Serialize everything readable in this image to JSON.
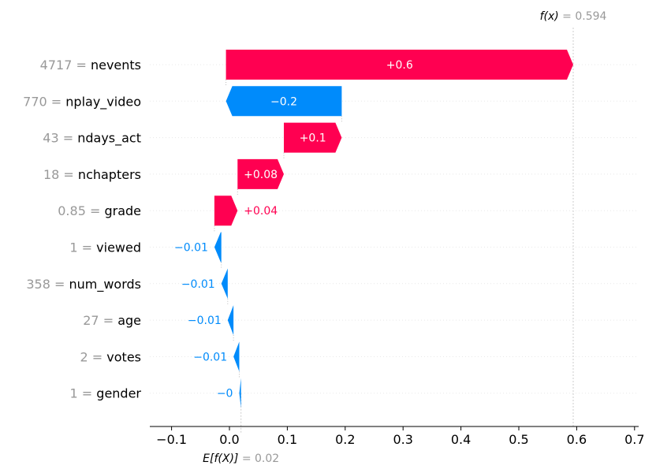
{
  "chart_data": {
    "type": "waterfall",
    "title": "",
    "xlabel": "",
    "ylabel": "",
    "xlim": [
      -0.14,
      0.7
    ],
    "x_ticks": [
      -0.1,
      0.0,
      0.1,
      0.2,
      0.3,
      0.4,
      0.5,
      0.6,
      0.7
    ],
    "x_tick_labels": [
      "−0.1",
      "0.0",
      "0.1",
      "0.2",
      "0.3",
      "0.4",
      "0.5",
      "0.6",
      "0.7"
    ],
    "base_value": 0.02,
    "base_label": "E[f(X)]",
    "base_value_text": "= 0.02",
    "output_value": 0.594,
    "output_label": "f(x)",
    "output_value_text": "= 0.594",
    "positive_color": "#ff0051",
    "negative_color": "#008bfb",
    "features": [
      {
        "value_text": "4717",
        "name": "nevents",
        "shap": 0.6,
        "label": "+0.6"
      },
      {
        "value_text": "770",
        "name": "nplay_video",
        "shap": -0.2,
        "label": "−0.2"
      },
      {
        "value_text": "43",
        "name": "ndays_act",
        "shap": 0.1,
        "label": "+0.1"
      },
      {
        "value_text": "18",
        "name": "nchapters",
        "shap": 0.08,
        "label": "+0.08"
      },
      {
        "value_text": "0.85",
        "name": "grade",
        "shap": 0.04,
        "label": "+0.04"
      },
      {
        "value_text": "1",
        "name": "viewed",
        "shap": -0.012,
        "label": "−0.01"
      },
      {
        "value_text": "358",
        "name": "num_words",
        "shap": -0.011,
        "label": "−0.01"
      },
      {
        "value_text": "27",
        "name": "age",
        "shap": -0.01,
        "label": "−0.01"
      },
      {
        "value_text": "2",
        "name": "votes",
        "shap": -0.01,
        "label": "−0.01"
      },
      {
        "value_text": "1",
        "name": "gender",
        "shap": -0.003,
        "label": "−0"
      }
    ]
  }
}
